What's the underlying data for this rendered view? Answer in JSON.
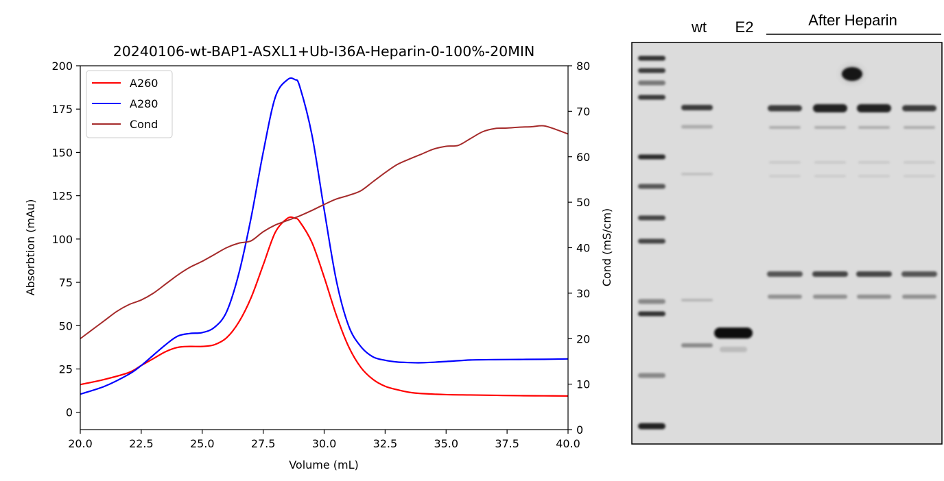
{
  "chart_data": {
    "type": "line",
    "title": "20240106-wt-BAP1-ASXL1+Ub-I36A-Heparin-0-100%-20MIN",
    "xlabel": "Volume (mL)",
    "ylabel": "Absorbtion (mAu)",
    "y2label": "Cond (mS/cm)",
    "xlim": [
      20,
      40
    ],
    "ylim": [
      -10,
      200
    ],
    "y2lim": [
      0,
      80
    ],
    "xticks": [
      "20.0",
      "22.5",
      "25.0",
      "27.5",
      "30.0",
      "32.5",
      "35.0",
      "37.5",
      "40.0"
    ],
    "yticks": [
      "0",
      "25",
      "50",
      "75",
      "100",
      "125",
      "150",
      "175",
      "200"
    ],
    "y2ticks": [
      "0",
      "10",
      "20",
      "30",
      "40",
      "50",
      "60",
      "70",
      "80"
    ],
    "legend_placement": "top-left",
    "series": [
      {
        "name": "A260",
        "color": "#ff0000",
        "axis": "left",
        "x": [
          20.0,
          21.0,
          22.0,
          22.5,
          23.0,
          23.5,
          24.0,
          24.5,
          25.0,
          25.5,
          26.0,
          26.5,
          27.0,
          27.5,
          28.0,
          28.5,
          28.8,
          29.0,
          29.5,
          30.0,
          30.5,
          31.0,
          31.5,
          32.0,
          32.5,
          33.0,
          33.5,
          34.0,
          35.0,
          36.0,
          37.0,
          38.0,
          39.0,
          40.0
        ],
        "values": [
          16,
          19,
          23,
          27,
          31,
          35,
          37.5,
          38,
          38,
          39,
          43,
          52,
          66,
          85,
          104,
          112,
          112,
          110,
          98,
          78,
          56,
          38,
          26,
          19,
          15,
          13,
          11.5,
          10.8,
          10.2,
          10,
          9.8,
          9.6,
          9.5,
          9.4
        ]
      },
      {
        "name": "A280",
        "color": "#0000ff",
        "axis": "left",
        "x": [
          20.0,
          21.0,
          22.0,
          22.5,
          23.0,
          23.5,
          24.0,
          24.5,
          25.0,
          25.5,
          26.0,
          26.5,
          27.0,
          27.5,
          28.0,
          28.5,
          28.8,
          29.0,
          29.5,
          30.0,
          30.5,
          31.0,
          31.5,
          32.0,
          32.5,
          33.0,
          33.5,
          34.0,
          35.0,
          36.0,
          37.0,
          38.0,
          39.0,
          40.0
        ],
        "values": [
          10.5,
          15,
          22,
          27,
          33,
          39,
          44,
          45.5,
          46,
          49,
          58,
          80,
          112,
          150,
          182,
          192,
          192,
          188,
          160,
          117,
          76,
          50,
          38,
          32,
          30,
          29,
          28.7,
          28.6,
          29.3,
          30.2,
          30.4,
          30.5,
          30.6,
          30.8
        ]
      },
      {
        "name": "Cond",
        "color": "#a52a2a",
        "axis": "right",
        "x": [
          20.0,
          20.5,
          21.0,
          21.5,
          22.0,
          22.5,
          23.0,
          23.5,
          24.0,
          24.5,
          25.0,
          25.5,
          26.0,
          26.5,
          27.0,
          27.5,
          28.0,
          28.5,
          29.0,
          29.5,
          30.0,
          30.5,
          31.0,
          31.5,
          32.0,
          32.5,
          33.0,
          33.5,
          34.0,
          34.5,
          35.0,
          35.5,
          36.0,
          36.5,
          37.0,
          37.5,
          38.0,
          38.5,
          39.0,
          39.5,
          40.0
        ],
        "values": [
          20,
          22,
          24,
          26,
          27.5,
          28.5,
          30,
          32,
          34,
          35.7,
          37,
          38.5,
          40,
          41,
          41.5,
          43.5,
          45,
          46,
          47,
          48.2,
          49.5,
          50.7,
          51.5,
          52.5,
          54.5,
          56.5,
          58.3,
          59.5,
          60.6,
          61.7,
          62.3,
          62.5,
          64,
          65.5,
          66.2,
          66.3,
          66.5,
          66.6,
          66.8,
          66,
          65
        ]
      }
    ]
  },
  "gel": {
    "labels": {
      "wt": "wt",
      "e2": "E2",
      "after_heparin": "After Heparin"
    }
  }
}
